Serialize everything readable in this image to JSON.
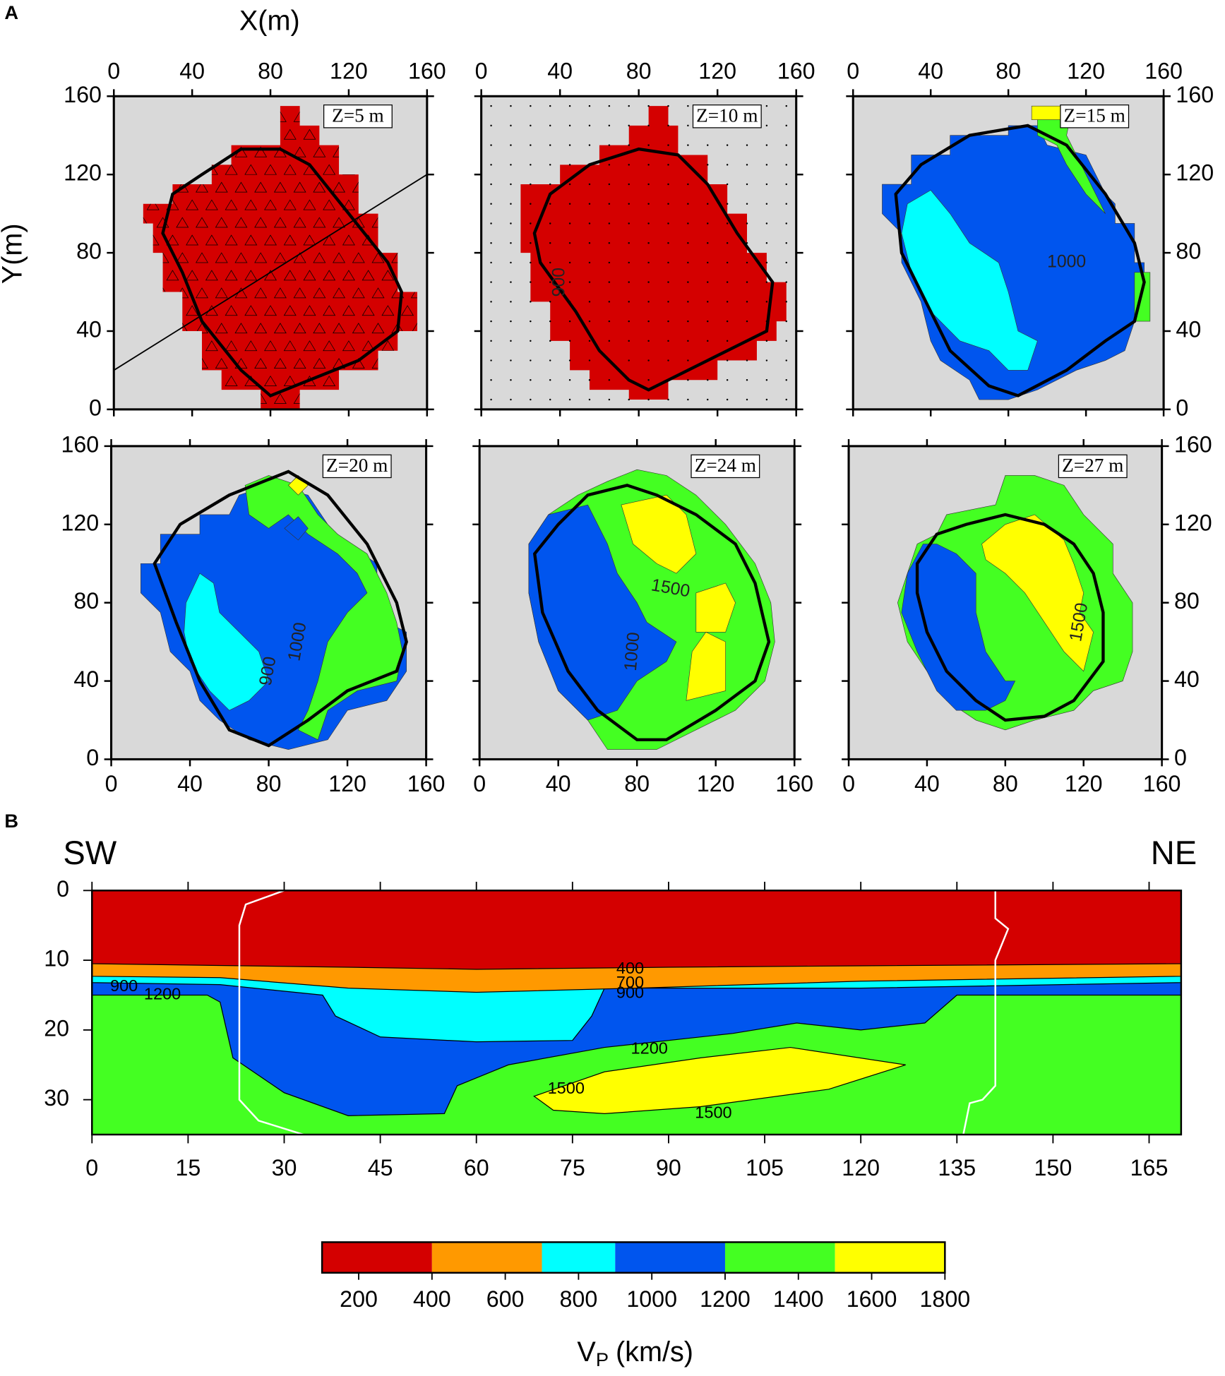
{
  "figure": {
    "label_a": "A",
    "label_b": "B"
  },
  "chart_data": [
    {
      "type": "map",
      "title": "Z=5 m",
      "xlabel": "X(m)",
      "ylabel": "Y(m)",
      "xlim": [
        0,
        160
      ],
      "ylim": [
        0,
        160
      ],
      "xticks": [
        0,
        40,
        80,
        120,
        160
      ],
      "yticks": [
        0,
        40,
        80,
        120,
        160
      ],
      "contour_labels": []
    },
    {
      "type": "map",
      "title": "Z=10 m",
      "xlim": [
        0,
        160
      ],
      "ylim": [
        0,
        160
      ],
      "xticks": [
        0,
        40,
        80,
        120,
        160
      ],
      "yticks": [
        0,
        40,
        80,
        120,
        160
      ],
      "contour_labels": [
        "900"
      ]
    },
    {
      "type": "map",
      "title": "Z=15 m",
      "xlim": [
        0,
        160
      ],
      "ylim": [
        0,
        160
      ],
      "xticks": [
        0,
        40,
        80,
        120,
        160
      ],
      "yticks": [
        0,
        40,
        80,
        120,
        160
      ],
      "contour_labels": [
        "1000"
      ]
    },
    {
      "type": "map",
      "title": "Z=20 m",
      "xlim": [
        0,
        160
      ],
      "ylim": [
        0,
        160
      ],
      "xticks": [
        0,
        40,
        80,
        120,
        160
      ],
      "yticks": [
        0,
        40,
        80,
        120,
        160
      ],
      "contour_labels": [
        "1000",
        "900"
      ]
    },
    {
      "type": "map",
      "title": "Z=24 m",
      "xlim": [
        0,
        160
      ],
      "ylim": [
        0,
        160
      ],
      "xticks": [
        0,
        40,
        80,
        120,
        160
      ],
      "yticks": [
        0,
        40,
        80,
        120,
        160
      ],
      "contour_labels": [
        "1500",
        "1000"
      ]
    },
    {
      "type": "map",
      "title": "Z=27 m",
      "xlim": [
        0,
        160
      ],
      "ylim": [
        0,
        160
      ],
      "xticks": [
        0,
        40,
        80,
        120,
        160
      ],
      "yticks": [
        0,
        40,
        80,
        120,
        160
      ],
      "contour_labels": [
        "1500"
      ]
    },
    {
      "type": "section",
      "left_label": "SW",
      "right_label": "NE",
      "xlim": [
        0,
        170
      ],
      "ylim": [
        35,
        0
      ],
      "xticks": [
        0,
        15,
        30,
        45,
        60,
        75,
        90,
        105,
        120,
        135,
        150,
        165
      ],
      "yticks": [
        0,
        10,
        20,
        30
      ],
      "contour_labels": [
        "900",
        "1200",
        "400",
        "700",
        "900",
        "1200",
        "1500",
        "1500"
      ]
    },
    {
      "type": "colorbar",
      "label": "V",
      "label_sub": "P",
      "label_unit": "(km/s)",
      "xlim": [
        100,
        1800
      ],
      "levels": [
        100,
        400,
        700,
        900,
        1200,
        1500,
        1800
      ],
      "colors": [
        "#d40000",
        "#ff9900",
        "#00ffff",
        "#0055ee",
        "#44ff22",
        "#ffff00"
      ],
      "xticks": [
        200,
        400,
        600,
        800,
        1000,
        1200,
        1400,
        1600,
        1800
      ],
      "background": "#d9d9d9"
    }
  ]
}
